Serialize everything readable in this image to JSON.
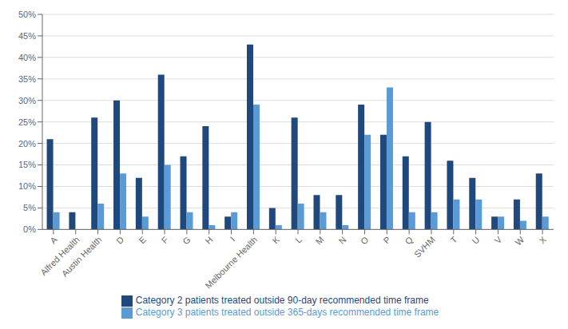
{
  "chart_data": {
    "type": "bar",
    "categories": [
      "A",
      "Alfred Health",
      "Austin Health",
      "D",
      "E",
      "F",
      "G",
      "H",
      "I",
      "Melbourne Health",
      "K",
      "L",
      "M",
      "N",
      "O",
      "P",
      "Q",
      "SVHM",
      "T",
      "U",
      "V",
      "W",
      "X"
    ],
    "series": [
      {
        "name": "Category 2 patients treated outside 90-day recommended time frame",
        "color": "#1F497D",
        "values": [
          21,
          4,
          26,
          30,
          12,
          36,
          17,
          24,
          3,
          43,
          5,
          26,
          8,
          8,
          29,
          22,
          17,
          25,
          16,
          12,
          3,
          7,
          13
        ]
      },
      {
        "name": "Category 3 patients treated outside 365-days recommended time frame",
        "color": "#5B9BD5",
        "values": [
          4,
          0,
          6,
          13,
          3,
          15,
          4,
          1,
          4,
          29,
          1,
          6,
          4,
          1,
          22,
          33,
          4,
          4,
          7,
          7,
          3,
          2,
          3
        ]
      }
    ],
    "ylim": [
      0,
      50
    ],
    "yticks": [
      {
        "value": 0,
        "label": "0%"
      },
      {
        "value": 5,
        "label": "5%"
      },
      {
        "value": 10,
        "label": "10%"
      },
      {
        "value": 15,
        "label": "15%"
      },
      {
        "value": 20,
        "label": "20%"
      },
      {
        "value": 25,
        "label": "25%"
      },
      {
        "value": 30,
        "label": "30%"
      },
      {
        "value": 35,
        "label": "35%"
      },
      {
        "value": 40,
        "label": "40%"
      },
      {
        "value": 45,
        "label": "45%"
      },
      {
        "value": 50,
        "label": "50%"
      }
    ],
    "grid": true,
    "legend": "bottom"
  }
}
